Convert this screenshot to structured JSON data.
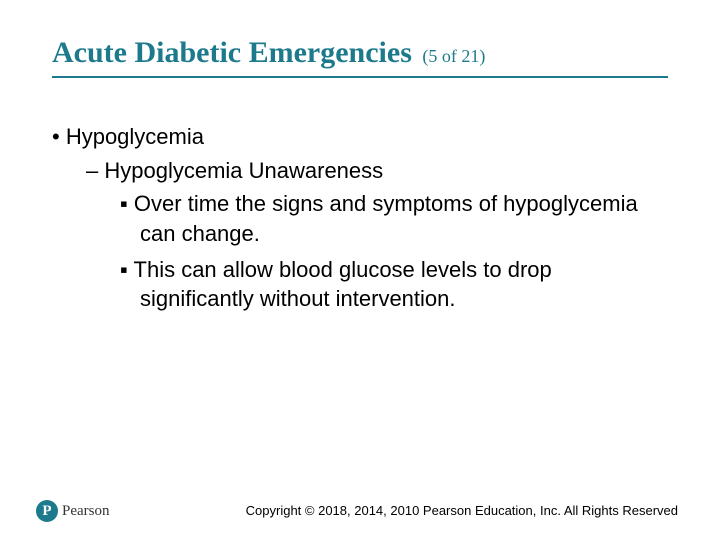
{
  "colors": {
    "accent": "#1d7a8c",
    "rule": "#1d7a8c",
    "logo_bg": "#1d7a8c",
    "text": "#000000",
    "background": "#ffffff"
  },
  "title": {
    "main": "Acute Diabetic Emergencies",
    "sub": "(5 of 21)",
    "main_fontsize": 30,
    "sub_fontsize": 18
  },
  "body": {
    "fontsize": 22,
    "lvl1": "Hypoglycemia",
    "lvl2": "Hypoglycemia Unawareness",
    "lvl3a": "Over time the signs and symptoms of hypoglycemia can change.",
    "lvl3b": "This can allow blood glucose levels to drop significantly without intervention."
  },
  "footer": {
    "logo_initial": "P",
    "logo_text": "Pearson",
    "copyright": "Copyright © 2018, 2014, 2010 Pearson Education, Inc. All Rights Reserved"
  }
}
